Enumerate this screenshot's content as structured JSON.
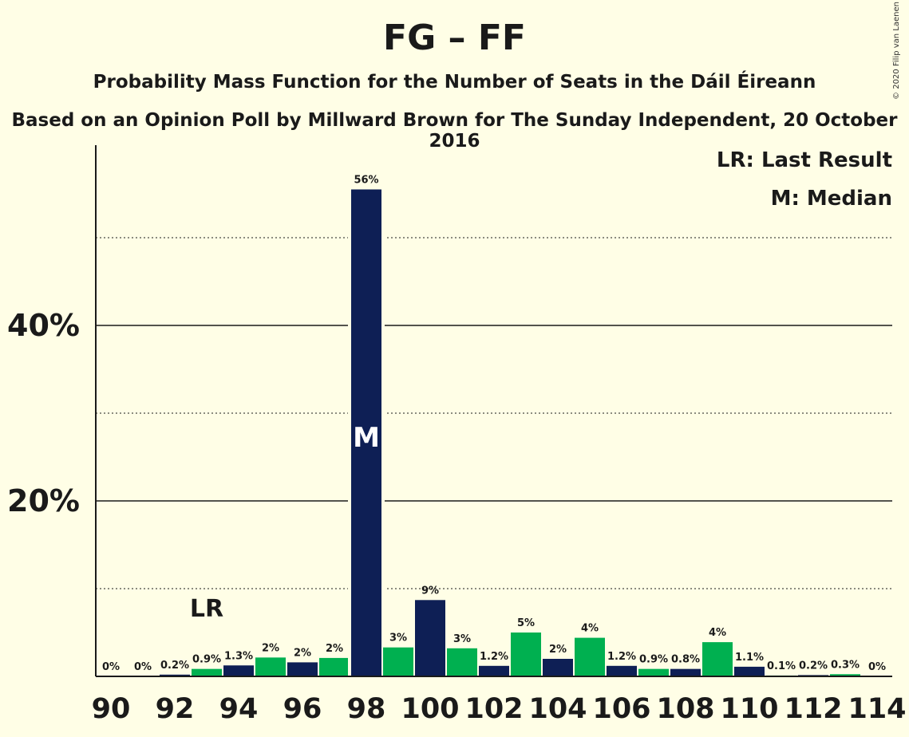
{
  "title": "FG – FF",
  "subtitle": "Probability Mass Function for the Number of Seats in the Dáil Éireann",
  "source": "Based on an Opinion Poll by Millward Brown for The Sunday Independent, 20 October 2016",
  "copyright": "© 2020 Filip van Laenen",
  "legend": {
    "lr": "LR: Last Result",
    "median": "M: Median"
  },
  "colors": {
    "background": "#FFFEE6",
    "navy": "#0E1F55",
    "green": "#00B050"
  },
  "chart_data": {
    "type": "bar",
    "categories": [
      90,
      91,
      92,
      93,
      94,
      95,
      96,
      97,
      98,
      99,
      100,
      101,
      102,
      103,
      104,
      105,
      106,
      107,
      108,
      109,
      110,
      111,
      112,
      113,
      114
    ],
    "values": [
      0,
      0,
      0.2,
      0.9,
      1.3,
      2,
      2,
      2,
      56,
      3,
      9,
      3,
      1.2,
      5,
      2,
      4,
      1.2,
      0.9,
      0.8,
      4,
      1.1,
      0.1,
      0.2,
      0.3,
      0
    ],
    "labels": [
      "0%",
      "0%",
      "0.2%",
      "0.9%",
      "1.3%",
      "2%",
      "2%",
      "2%",
      "56%",
      "3%",
      "9%",
      "3%",
      "1.2%",
      "5%",
      "2%",
      "4%",
      "1.2%",
      "0.9%",
      "0.8%",
      "4%",
      "1.1%",
      "0.1%",
      "0.2%",
      "0.3%",
      "0%"
    ],
    "value_heights": [
      0,
      0,
      0.2,
      0.85,
      1.25,
      2.15,
      1.6,
      2.1,
      55.5,
      3.3,
      8.7,
      3.2,
      1.2,
      5.0,
      2.0,
      4.4,
      1.2,
      0.85,
      0.85,
      3.9,
      1.1,
      0.1,
      0.15,
      0.25,
      0
    ],
    "bar_colors": [
      "navy",
      "green",
      "navy",
      "green",
      "navy",
      "green",
      "navy",
      "green",
      "navy",
      "green",
      "navy",
      "green",
      "navy",
      "green",
      "navy",
      "green",
      "navy",
      "green",
      "navy",
      "green",
      "navy",
      "green",
      "navy",
      "green",
      "navy"
    ],
    "x_tick_labels": [
      "90",
      "92",
      "94",
      "96",
      "98",
      "100",
      "102",
      "104",
      "106",
      "108",
      "110",
      "112",
      "114"
    ],
    "y_tick_labels": [
      "20%",
      "40%"
    ],
    "ylim": [
      0,
      60
    ],
    "last_result": 93,
    "last_result_label": "LR",
    "median": 98,
    "median_label": "M"
  }
}
